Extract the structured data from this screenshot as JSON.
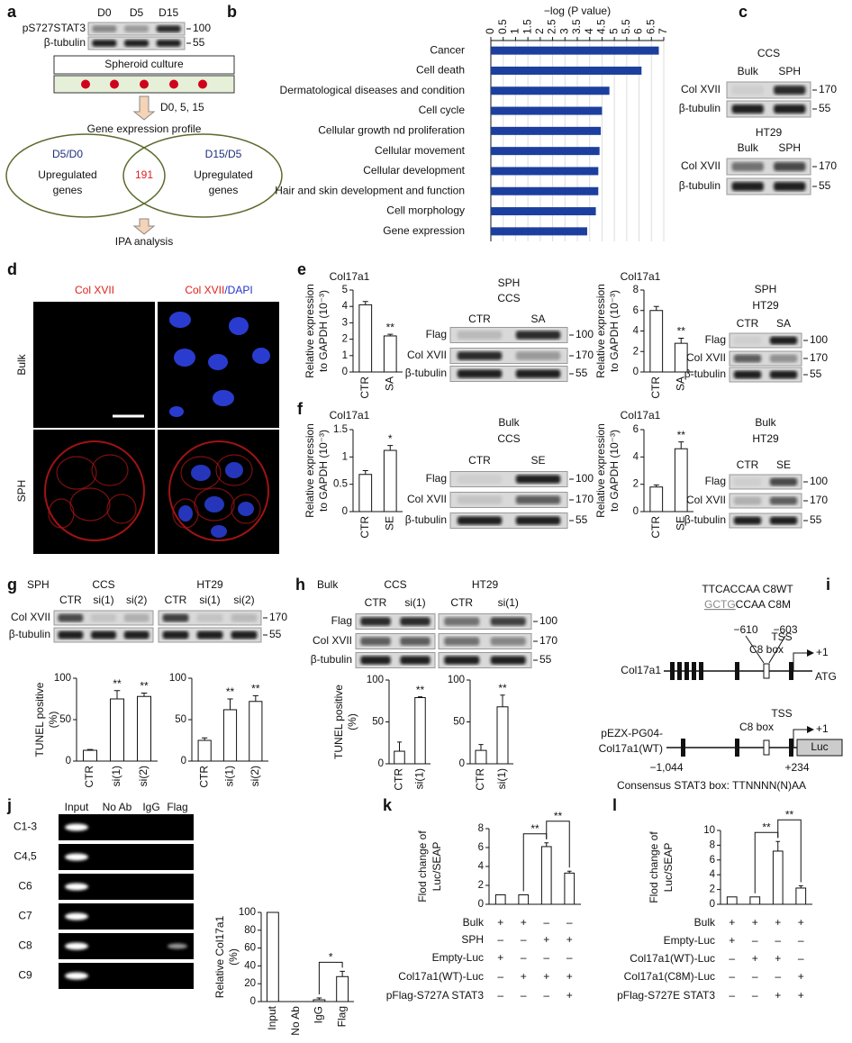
{
  "panel_labels": [
    "a",
    "b",
    "c",
    "d",
    "e",
    "f",
    "g",
    "h",
    "i",
    "j",
    "k",
    "l"
  ],
  "a": {
    "culture": "Spheroid culture",
    "timepoints": "D0, 5, 15",
    "profile": "Gene expression profile",
    "venn_left": [
      "D5/D0",
      "Upregulated",
      "genes"
    ],
    "venn_right": [
      "D15/D5",
      "Upregulated",
      "genes"
    ],
    "overlap": "191",
    "analysis": "IPA analysis"
  },
  "d": {
    "columns": [
      [
        "Col XVII"
      ],
      [
        "Col XVII",
        "/DAPI"
      ]
    ],
    "rows": [
      "Bulk",
      "SPH"
    ]
  },
  "g": {
    "condition": "SPH"
  },
  "h": {
    "condition": "Bulk"
  },
  "i": {
    "wt_sequence": "TTCACCAA C8WT",
    "mutant_sequence": [
      "GCTG",
      "CCAA C8M"
    ],
    "positions": [
      "−610",
      "−603"
    ],
    "box": "C8 box",
    "tss": "TSS",
    "plus_one": "+1",
    "start_codon": "ATG",
    "gene": "Col17a1",
    "construct": [
      "pEZX-PG04-",
      "Col17a1(WT)"
    ],
    "reporter": "Luc",
    "range": [
      "−1,044",
      "+234"
    ],
    "consensus": "Consensus STAT3 box: TTNNNN(N)AA"
  },
  "j": {
    "lanes": [
      "Input",
      "No Ab",
      "IgG",
      "Flag"
    ],
    "regions": [
      "C1-3",
      "C4,5",
      "C6",
      "C7",
      "C8",
      "C9"
    ]
  },
  "blots": [
    {
      "lanes": [
        "D0",
        "D5",
        "D15"
      ],
      "rows": [
        "pS727STAT3",
        "β-tubulin"
      ],
      "markers": [
        100,
        55
      ]
    },
    {
      "title": [
        "CCS"
      ],
      "lanes": [
        "Bulk",
        "SPH"
      ],
      "rows": [
        "Col XVII",
        "β-tubulin"
      ],
      "markers": [
        170,
        55
      ]
    },
    {
      "title": [
        "HT29"
      ],
      "lanes": [
        "Bulk",
        "SPH"
      ],
      "rows": [
        "Col XVII",
        "β-tubulin"
      ],
      "markers": [
        170,
        55
      ]
    },
    {
      "title": [
        "SPH",
        "CCS"
      ],
      "lanes": [
        "CTR",
        "SA"
      ],
      "rows": [
        "Flag",
        "Col XVII",
        "β-tubulin"
      ],
      "markers": [
        100,
        170,
        55
      ]
    },
    {
      "title": [
        "SPH",
        "HT29"
      ],
      "lanes": [
        "CTR",
        "SA"
      ],
      "rows": [
        "Flag",
        "Col XVII",
        "β-tubulin"
      ],
      "markers": [
        100,
        170,
        55
      ]
    },
    {
      "title": [
        "Bulk",
        "CCS"
      ],
      "lanes": [
        "CTR",
        "SE"
      ],
      "rows": [
        "Flag",
        "Col XVII",
        "β-tubulin"
      ],
      "markers": [
        100,
        170,
        55
      ]
    },
    {
      "title": [
        "Bulk",
        "HT29"
      ],
      "lanes": [
        "CTR",
        "SE"
      ],
      "rows": [
        "Flag",
        "Col XVII",
        "β-tubulin"
      ],
      "markers": [
        100,
        170,
        55
      ]
    },
    {
      "title": [
        "CCS"
      ],
      "lanes": [
        "CTR",
        "si(1)",
        "si(2)"
      ],
      "rows": [
        "Col XVII",
        "β-tubulin"
      ]
    },
    {
      "title": [
        "HT29"
      ],
      "lanes": [
        "CTR",
        "si(1)",
        "si(2)"
      ],
      "markers": [
        170,
        55
      ]
    },
    {
      "title": [
        "CCS"
      ],
      "lanes": [
        "CTR",
        "si(1)"
      ],
      "rows": [
        "Flag",
        "Col XVII",
        "β-tubulin"
      ]
    },
    {
      "title": [
        "HT29"
      ],
      "lanes": [
        "CTR",
        "si(1)"
      ],
      "markers": [
        100,
        170,
        55
      ]
    }
  ],
  "chart_data": [
    {
      "type": "barh",
      "title": "−log (P value)",
      "categories": [
        "Cancer",
        "Cell death",
        "Dermatological diseases and condition",
        "Cell cycle",
        "Cellular growth nd proliferation",
        "Cellular movement",
        "Cellular development",
        "Hair and skin development and function",
        "Cell morphology",
        "Gene expression"
      ],
      "values": [
        6.8,
        6.1,
        4.8,
        4.5,
        4.45,
        4.4,
        4.35,
        4.35,
        4.25,
        3.9
      ],
      "color": "#1c3f9f",
      "xlim": [
        0,
        7
      ],
      "xticks": [
        0,
        0.5,
        1,
        1.5,
        2,
        2.5,
        3,
        3.5,
        4,
        4.5,
        5,
        5.5,
        6,
        6.5,
        7
      ],
      "grid": true
    },
    {
      "type": "bar",
      "title": "Col17a1",
      "y_label": [
        "Relative expression",
        "to GAPDH (10⁻³)"
      ],
      "categories": [
        "CTR",
        "SA"
      ],
      "values": [
        4.1,
        2.2
      ],
      "errors": [
        0.2,
        0.1
      ],
      "significance": [
        null,
        "**"
      ],
      "ylim": [
        0,
        5
      ],
      "yticks": [
        0,
        1,
        2,
        3,
        4,
        5
      ],
      "color": "#ffffff"
    },
    {
      "type": "bar",
      "title": "Col17a1",
      "y_label": [
        "Relative expression",
        "to GAPDH (10⁻³)"
      ],
      "categories": [
        "CTR",
        "SA"
      ],
      "values": [
        6.0,
        2.8
      ],
      "errors": [
        0.4,
        0.5
      ],
      "significance": [
        null,
        "**"
      ],
      "ylim": [
        0,
        8
      ],
      "yticks": [
        0,
        2,
        4,
        6,
        8
      ],
      "color": "#ffffff"
    },
    {
      "type": "bar",
      "title": "Col17a1",
      "y_label": [
        "Relative expression",
        "to GAPDH (10⁻³)"
      ],
      "categories": [
        "CTR",
        "SE"
      ],
      "values": [
        0.68,
        1.12
      ],
      "errors": [
        0.07,
        0.09
      ],
      "significance": [
        null,
        "*"
      ],
      "ylim": [
        0,
        1.5
      ],
      "yticks": [
        0,
        0.5,
        1,
        1.5
      ],
      "color": "#ffffff"
    },
    {
      "type": "bar",
      "title": "Col17a1",
      "y_label": [
        "Relative expression",
        "to GAPDH (10⁻³)"
      ],
      "categories": [
        "CTR",
        "SE"
      ],
      "values": [
        1.8,
        4.6
      ],
      "errors": [
        0.15,
        0.5
      ],
      "significance": [
        null,
        "**"
      ],
      "ylim": [
        0,
        6
      ],
      "yticks": [
        0,
        2,
        4,
        6
      ],
      "color": "#ffffff"
    },
    {
      "type": "bar",
      "y_label": [
        "TUNEL positive",
        "(%)"
      ],
      "categories": [
        "CTR",
        "si(1)",
        "si(2)"
      ],
      "values": [
        13,
        75,
        78
      ],
      "errors": [
        1,
        10,
        4
      ],
      "significance": [
        null,
        "**",
        "**"
      ],
      "ylim": [
        0,
        100
      ],
      "yticks": [
        0,
        50,
        100
      ],
      "color": "#ffffff"
    },
    {
      "type": "bar",
      "categories": [
        "CTR",
        "si(1)",
        "si(2)"
      ],
      "values": [
        25,
        62,
        72
      ],
      "errors": [
        3,
        13,
        7
      ],
      "significance": [
        null,
        "**",
        "**"
      ],
      "ylim": [
        0,
        100
      ],
      "yticks": [
        0,
        50,
        100
      ],
      "color": "#ffffff"
    },
    {
      "type": "bar",
      "y_label": [
        "TUNEL positive",
        "(%)"
      ],
      "categories": [
        "CTR",
        "si(1)"
      ],
      "values": [
        15,
        79
      ],
      "errors": [
        11,
        1
      ],
      "significance": [
        null,
        "**"
      ],
      "ylim": [
        0,
        100
      ],
      "yticks": [
        0,
        50,
        100
      ],
      "color": "#ffffff"
    },
    {
      "type": "bar",
      "categories": [
        "CTR",
        "si(1)"
      ],
      "values": [
        16,
        68
      ],
      "errors": [
        7,
        14
      ],
      "significance": [
        null,
        "**"
      ],
      "ylim": [
        0,
        100
      ],
      "yticks": [
        0,
        50,
        100
      ],
      "color": "#ffffff"
    },
    {
      "type": "bar",
      "y_label": [
        "Relative Col17a1",
        "(%)"
      ],
      "categories": [
        "Input",
        "No Ab",
        "IgG",
        "Flag"
      ],
      "values": [
        100,
        0,
        2,
        28
      ],
      "errors": [
        null,
        null,
        2,
        6
      ],
      "comparisons": [
        {
          "between": [
            2,
            3
          ],
          "label": "*"
        }
      ],
      "ylim": [
        0,
        100
      ],
      "yticks": [
        0,
        20,
        40,
        60,
        80,
        100
      ],
      "color": "#ffffff"
    },
    {
      "type": "bar",
      "y_label": [
        "Flod change of",
        "Luc/SEAP"
      ],
      "values": [
        1,
        1,
        6.1,
        3.3
      ],
      "errors": [
        null,
        null,
        0.4,
        0.2
      ],
      "comparisons": [
        {
          "between": [
            1,
            2
          ],
          "label": "**"
        },
        {
          "between": [
            2,
            3
          ],
          "label": "**"
        }
      ],
      "ylim": [
        0,
        8
      ],
      "yticks": [
        0,
        2,
        4,
        6,
        8
      ],
      "color": "#ffffff",
      "conditions": [
        {
          "name": "Bulk",
          "signs": [
            "+",
            "+",
            "–",
            "–"
          ]
        },
        {
          "name": "SPH",
          "signs": [
            "–",
            "–",
            "+",
            "+"
          ]
        },
        {
          "name": "Empty-Luc",
          "signs": [
            "+",
            "–",
            "–",
            "–"
          ]
        },
        {
          "name": "Col17a1(WT)-Luc",
          "signs": [
            "–",
            "+",
            "+",
            "+"
          ]
        },
        {
          "name": "pFlag-S727A STAT3",
          "signs": [
            "–",
            "–",
            "–",
            "+"
          ]
        }
      ]
    },
    {
      "type": "bar",
      "y_label": [
        "Flod change of",
        "Luc/SEAP"
      ],
      "values": [
        1,
        1,
        7.2,
        2.2
      ],
      "errors": [
        null,
        null,
        1.3,
        0.3
      ],
      "comparisons": [
        {
          "between": [
            1,
            2
          ],
          "label": "**"
        },
        {
          "between": [
            2,
            3
          ],
          "label": "**"
        }
      ],
      "ylim": [
        0,
        10
      ],
      "yticks": [
        0,
        2,
        4,
        6,
        8,
        10
      ],
      "color": "#ffffff",
      "conditions": [
        {
          "name": "Bulk",
          "signs": [
            "+",
            "+",
            "+",
            "+"
          ]
        },
        {
          "name": "Empty-Luc",
          "signs": [
            "+",
            "–",
            "–",
            "–"
          ]
        },
        {
          "name": "Col17a1(WT)-Luc",
          "signs": [
            "–",
            "+",
            "+",
            "–"
          ]
        },
        {
          "name": "Col17a1(C8M)-Luc",
          "signs": [
            "–",
            "–",
            "–",
            "+"
          ]
        },
        {
          "name": "pFlag-S727E STAT3",
          "signs": [
            "–",
            "–",
            "+",
            "+"
          ]
        }
      ]
    }
  ]
}
